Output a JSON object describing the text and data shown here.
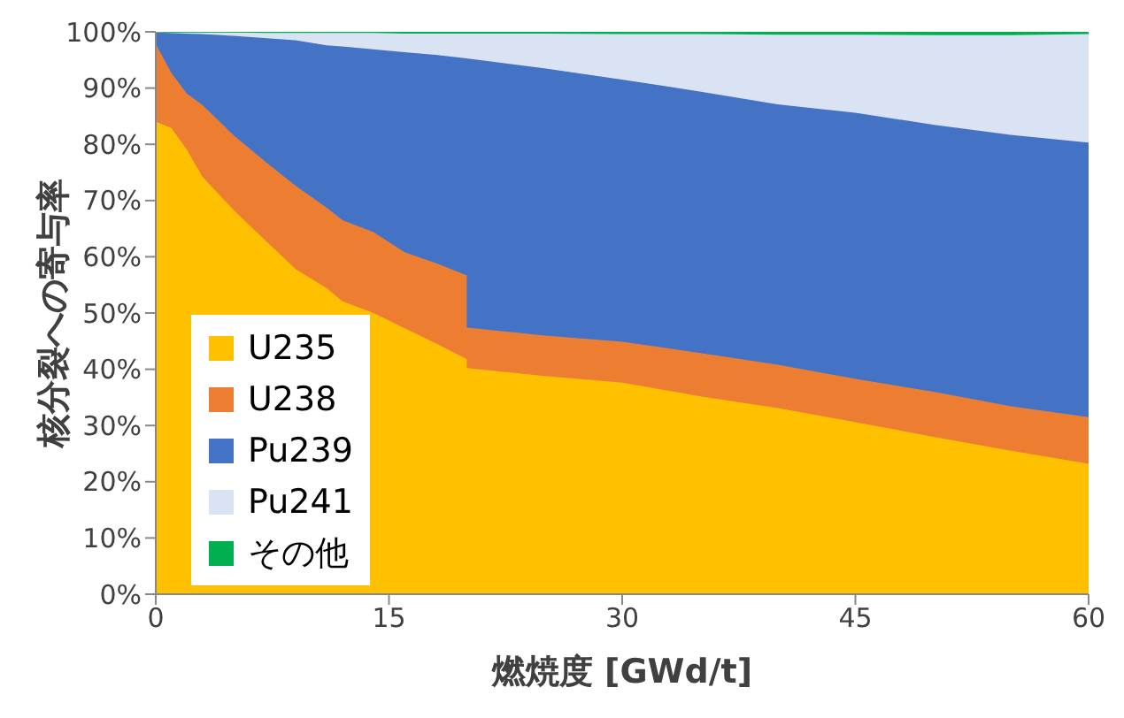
{
  "chart_data": {
    "type": "area",
    "stacked": true,
    "xlabel": "燃焼度 [GWd/t]",
    "ylabel": "核分裂への寄与率",
    "x": [
      0,
      1,
      2,
      3,
      5,
      7,
      9,
      11,
      12,
      14,
      16,
      18,
      20,
      20,
      25,
      30,
      35,
      40,
      45,
      50,
      55,
      60
    ],
    "series": [
      {
        "name": "U235",
        "color": "#ffc000",
        "values": [
          84,
          82.9,
          79,
          74.2,
          68.3,
          63,
          57.8,
          54.4,
          52.1,
          50,
          47.3,
          44.6,
          41.8,
          40.2,
          38.8,
          37.6,
          35.2,
          33.1,
          30.6,
          28,
          25.5,
          23.2
        ]
      },
      {
        "name": "U238",
        "color": "#ed7d31",
        "values": [
          13.8,
          9.8,
          10,
          12.8,
          13.3,
          14,
          14.8,
          14.3,
          14.4,
          14.4,
          13.5,
          14.3,
          14.9,
          7.2,
          7.2,
          7.3,
          7.7,
          7.7,
          7.7,
          8,
          7.9,
          8.3
        ]
      },
      {
        "name": "Pu239",
        "color": "#4472c4",
        "values": [
          2.1,
          7.1,
          10.7,
          12.6,
          17.7,
          21.9,
          25.9,
          28.9,
          30.9,
          32.5,
          35.6,
          37,
          38.6,
          47.9,
          47.5,
          46.6,
          46.5,
          46.3,
          47.3,
          47.5,
          48.3,
          48.8
        ]
      },
      {
        "name": "Pu241",
        "color": "#dae3f3",
        "values": [
          0.1,
          0.1,
          0.2,
          0.3,
          0.6,
          0.9,
          1.3,
          2.2,
          2.4,
          2.9,
          3.3,
          3.8,
          4.4,
          4.4,
          6.2,
          8.1,
          10.2,
          12.4,
          13.9,
          15.9,
          17.7,
          19.3
        ]
      },
      {
        "name": "その他",
        "color": "#00b050",
        "values": [
          0,
          0.1,
          0.1,
          0.1,
          0.1,
          0.2,
          0.2,
          0.2,
          0.2,
          0.2,
          0.3,
          0.3,
          0.3,
          0.3,
          0.3,
          0.4,
          0.4,
          0.5,
          0.5,
          0.6,
          0.6,
          0.7
        ]
      }
    ],
    "xlim": [
      0,
      60
    ],
    "xticks": [
      0,
      15,
      30,
      45,
      60
    ],
    "ylim": [
      0,
      100
    ],
    "yticks": [
      {
        "value": 0,
        "label": "0%"
      },
      {
        "value": 10,
        "label": "10%"
      },
      {
        "value": 20,
        "label": "20%"
      },
      {
        "value": 30,
        "label": "30%"
      },
      {
        "value": 40,
        "label": "40%"
      },
      {
        "value": 50,
        "label": "50%"
      },
      {
        "value": 60,
        "label": "60%"
      },
      {
        "value": 70,
        "label": "70%"
      },
      {
        "value": 80,
        "label": "80%"
      },
      {
        "value": 90,
        "label": "90%"
      },
      {
        "value": 100,
        "label": "100%"
      }
    ],
    "legend": "bottom left"
  }
}
